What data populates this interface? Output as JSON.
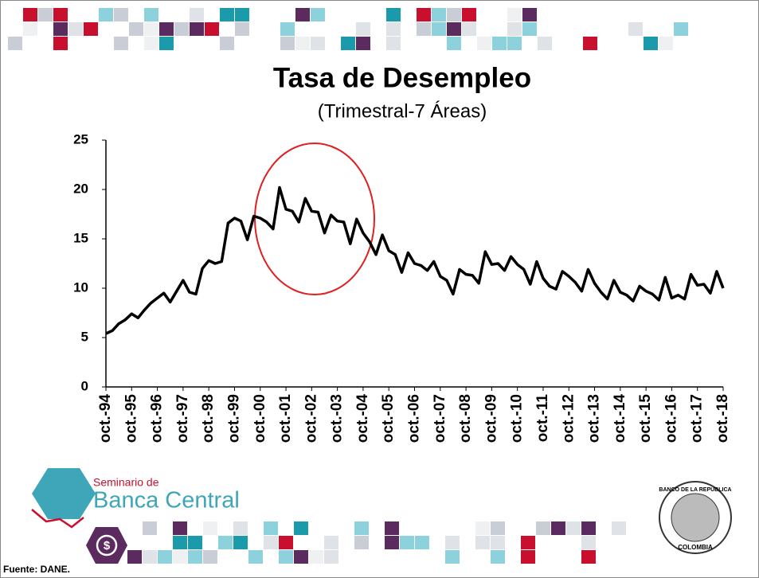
{
  "chart_data": {
    "type": "line",
    "title": "Tasa de Desempleo",
    "subtitle": "(Trimestral-7 Áreas)",
    "categories": [
      "oct.-94",
      null,
      null,
      null,
      "oct.-95",
      null,
      null,
      null,
      "oct.-96",
      null,
      null,
      null,
      "oct.-97",
      null,
      null,
      null,
      "oct.-98",
      null,
      null,
      null,
      "oct.-99",
      null,
      null,
      null,
      "oct.-00",
      null,
      null,
      null,
      "oct.-01",
      null,
      null,
      null,
      "oct.-02",
      null,
      null,
      null,
      "oct.-03",
      null,
      null,
      null,
      "oct.-04",
      null,
      null,
      null,
      "oct.-05",
      null,
      null,
      null,
      "oct.-06",
      null,
      null,
      null,
      "oct.-07",
      null,
      null,
      null,
      "oct.-08",
      null,
      null,
      null,
      "oct.-09",
      null,
      null,
      null,
      "oct.-10",
      null,
      null,
      null,
      "oct.-11",
      null,
      null,
      null,
      "oct.-12",
      null,
      null,
      null,
      "oct.-13",
      null,
      null,
      null,
      "oct.-14",
      null,
      null,
      null,
      "oct.-15",
      null,
      null,
      null,
      "oct.-16",
      null,
      null,
      null,
      "oct.-17",
      null,
      null,
      null,
      "oct.-18"
    ],
    "values": [
      5.4,
      5.7,
      6.4,
      6.8,
      7.4,
      7.0,
      7.8,
      8.5,
      9.0,
      9.5,
      8.6,
      9.7,
      10.8,
      9.6,
      9.4,
      12.0,
      12.8,
      12.5,
      12.7,
      16.6,
      17.1,
      16.8,
      14.9,
      17.3,
      17.1,
      16.7,
      16.0,
      20.2,
      18.0,
      17.8,
      16.7,
      19.1,
      17.8,
      17.7,
      15.6,
      17.4,
      16.8,
      16.7,
      14.5,
      17.0,
      15.6,
      14.7,
      13.4,
      15.4,
      13.8,
      13.4,
      11.6,
      13.6,
      12.5,
      12.3,
      11.8,
      12.7,
      11.2,
      10.8,
      9.4,
      11.9,
      11.4,
      11.3,
      10.5,
      13.7,
      12.4,
      12.5,
      11.8,
      13.2,
      12.4,
      11.9,
      10.4,
      12.7,
      11.0,
      10.2,
      9.9,
      11.7,
      11.2,
      10.6,
      9.7,
      11.9,
      10.5,
      9.6,
      8.9,
      10.8,
      9.6,
      9.3,
      8.7,
      10.2,
      9.7,
      9.4,
      8.8,
      11.1,
      9.0,
      9.3,
      8.9,
      11.4,
      10.3,
      10.4,
      9.5,
      11.7,
      10.0
    ],
    "color": "#000000",
    "ylim": [
      0,
      25
    ],
    "yticks": [
      0,
      5,
      10,
      15,
      20,
      25
    ]
  },
  "branding": {
    "seminar_top": "Seminario de",
    "seminar_name": "Banca Central",
    "bank_top": "BANCO DE LA REPUBLICA",
    "bank_bottom": "COLOMBIA"
  },
  "source": "Fuente: DANE."
}
